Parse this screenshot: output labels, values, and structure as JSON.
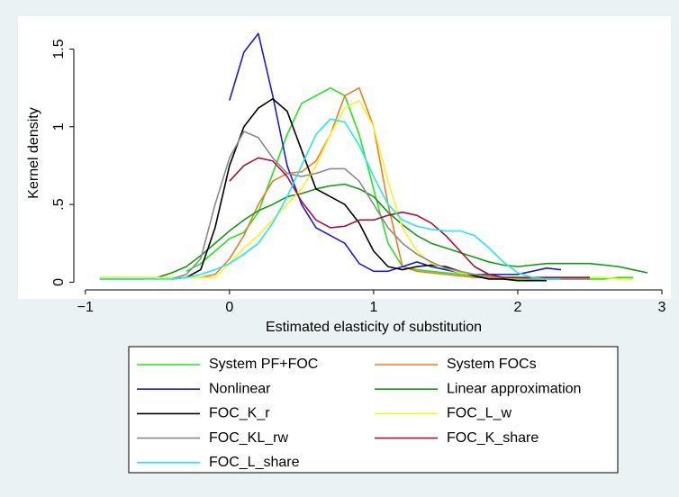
{
  "chart_data": {
    "type": "line",
    "x_label": "Estimated elasticity of substitution",
    "y_label": "Kernel density",
    "x": [
      -0.9,
      -0.8,
      -0.7,
      -0.6,
      -0.5,
      -0.4,
      -0.3,
      -0.2,
      -0.1,
      0,
      0.1,
      0.2,
      0.3,
      0.4,
      0.5,
      0.6,
      0.7,
      0.8,
      0.9,
      1,
      1.1,
      1.2,
      1.3,
      1.4,
      1.5,
      1.6,
      1.7,
      1.8,
      1.9,
      2,
      2.1,
      2.2,
      2.3,
      2.4,
      2.5,
      2.6,
      2.7,
      2.8,
      2.9
    ],
    "xlim": [
      -1.08,
      3.0
    ],
    "ylim": [
      -0.05,
      1.7
    ],
    "xticks": [
      {
        "value": -1,
        "label": "−1"
      },
      0,
      1,
      2,
      3
    ],
    "yticks": [
      0,
      {
        "value": 0.5,
        "label": ".5"
      },
      1,
      1.5
    ],
    "legend": "bottom",
    "series": [
      {
        "name": "System PF+FOC",
        "color": "#22e622",
        "values": [
          null,
          null,
          null,
          null,
          null,
          null,
          0.07,
          0.12,
          0.2,
          0.28,
          0.32,
          0.45,
          0.7,
          0.95,
          1.15,
          1.2,
          1.25,
          1.2,
          0.95,
          0.6,
          0.25,
          0.1,
          0.08,
          0.07,
          0.06,
          0.05,
          0.04,
          0.03,
          0.02,
          0.02,
          0.02,
          0.02,
          0.02,
          0.02,
          0.02,
          0.02,
          0.03,
          0.03,
          null
        ]
      },
      {
        "name": "System FOCs",
        "color": "#ee7c22",
        "values": [
          0.03,
          0.03,
          0.03,
          0.03,
          0.03,
          0.03,
          0.03,
          0.03,
          0.05,
          0.15,
          0.3,
          0.5,
          0.65,
          0.7,
          0.71,
          0.78,
          0.95,
          1.2,
          1.25,
          1.0,
          0.5,
          0.1,
          0.07,
          0.06,
          0.05,
          0.04,
          0.03,
          0.03,
          0.03,
          0.03,
          0.03,
          0.03,
          0.03,
          0.03,
          0.03,
          null,
          null,
          null,
          null
        ]
      },
      {
        "name": "Nonlinear",
        "color": "#1c1cd6",
        "values": [
          null,
          null,
          null,
          null,
          null,
          null,
          null,
          null,
          null,
          1.17,
          1.48,
          1.6,
          1.2,
          0.75,
          0.5,
          0.35,
          0.3,
          0.25,
          0.12,
          0.07,
          0.07,
          0.1,
          0.13,
          0.1,
          0.08,
          0.06,
          0.05,
          0.05,
          0.05,
          0.05,
          0.07,
          0.09,
          0.08,
          null,
          null,
          null,
          null,
          null,
          null
        ]
      },
      {
        "name": "Linear approximation",
        "color": "#119a11",
        "values": [
          0.02,
          0.02,
          0.02,
          0.02,
          0.03,
          0.06,
          0.1,
          0.17,
          0.25,
          0.33,
          0.4,
          0.46,
          0.5,
          0.55,
          0.57,
          0.6,
          0.62,
          0.63,
          0.6,
          0.55,
          0.45,
          0.37,
          0.3,
          0.25,
          0.22,
          0.19,
          0.16,
          0.13,
          0.11,
          0.1,
          0.11,
          0.12,
          0.12,
          0.12,
          0.12,
          0.11,
          0.1,
          0.08,
          0.06
        ]
      },
      {
        "name": "FOC_K_r",
        "color": "#000000",
        "values": [
          null,
          null,
          null,
          null,
          null,
          0.02,
          0.03,
          0.08,
          0.35,
          0.75,
          1.0,
          1.12,
          1.18,
          1.1,
          0.85,
          0.6,
          0.55,
          0.5,
          0.38,
          0.2,
          0.1,
          0.08,
          0.1,
          0.11,
          0.1,
          0.07,
          0.04,
          0.02,
          0.02,
          0.01,
          0.01,
          0.01,
          null,
          null,
          null,
          null,
          null,
          null,
          null
        ]
      },
      {
        "name": "FOC_L_w",
        "color": "#f4f428",
        "values": [
          0.03,
          0.03,
          0.03,
          0.03,
          0.03,
          0.03,
          0.03,
          0.03,
          0.03,
          0.12,
          0.22,
          0.3,
          0.4,
          0.5,
          0.6,
          0.75,
          0.95,
          1.12,
          1.17,
          1.0,
          0.65,
          0.35,
          0.2,
          0.12,
          0.09,
          0.06,
          0.05,
          0.04,
          0.03,
          0.03,
          0.03,
          0.03,
          0.03,
          0.03,
          0.03,
          0.03,
          0.02,
          0.02,
          null
        ]
      },
      {
        "name": "FOC_KL_rw",
        "color": "#8a8a8a",
        "values": [
          null,
          null,
          null,
          null,
          null,
          0.02,
          0.05,
          0.15,
          0.5,
          0.8,
          0.97,
          0.93,
          0.8,
          0.7,
          0.68,
          0.7,
          0.73,
          0.73,
          0.65,
          0.5,
          0.35,
          0.25,
          0.18,
          0.13,
          0.09,
          0.07,
          0.05,
          0.04,
          0.03,
          0.03,
          0.02,
          0.02,
          0.02,
          0.02,
          0.02,
          null,
          null,
          null,
          null
        ]
      },
      {
        "name": "FOC_K_share",
        "color": "#a8123a",
        "values": [
          null,
          null,
          null,
          null,
          null,
          null,
          null,
          null,
          null,
          0.65,
          0.75,
          0.8,
          0.78,
          0.68,
          0.52,
          0.4,
          0.35,
          0.36,
          0.4,
          0.4,
          0.43,
          0.45,
          0.43,
          0.38,
          0.3,
          0.2,
          0.1,
          0.05,
          0.03,
          0.03,
          0.03,
          0.03,
          0.03,
          0.03,
          0.03,
          null,
          null,
          null,
          null
        ]
      },
      {
        "name": "FOC_L_share",
        "color": "#22eaea",
        "values": [
          0.02,
          0.02,
          0.02,
          0.02,
          0.02,
          0.02,
          0.03,
          0.05,
          0.08,
          0.12,
          0.18,
          0.25,
          0.38,
          0.55,
          0.75,
          0.95,
          1.05,
          1.03,
          0.88,
          0.68,
          0.5,
          0.4,
          0.36,
          0.34,
          0.33,
          0.33,
          0.3,
          0.22,
          0.13,
          0.06,
          0.03,
          0.02,
          0.02,
          null,
          null,
          null,
          null,
          null,
          null
        ]
      }
    ]
  }
}
